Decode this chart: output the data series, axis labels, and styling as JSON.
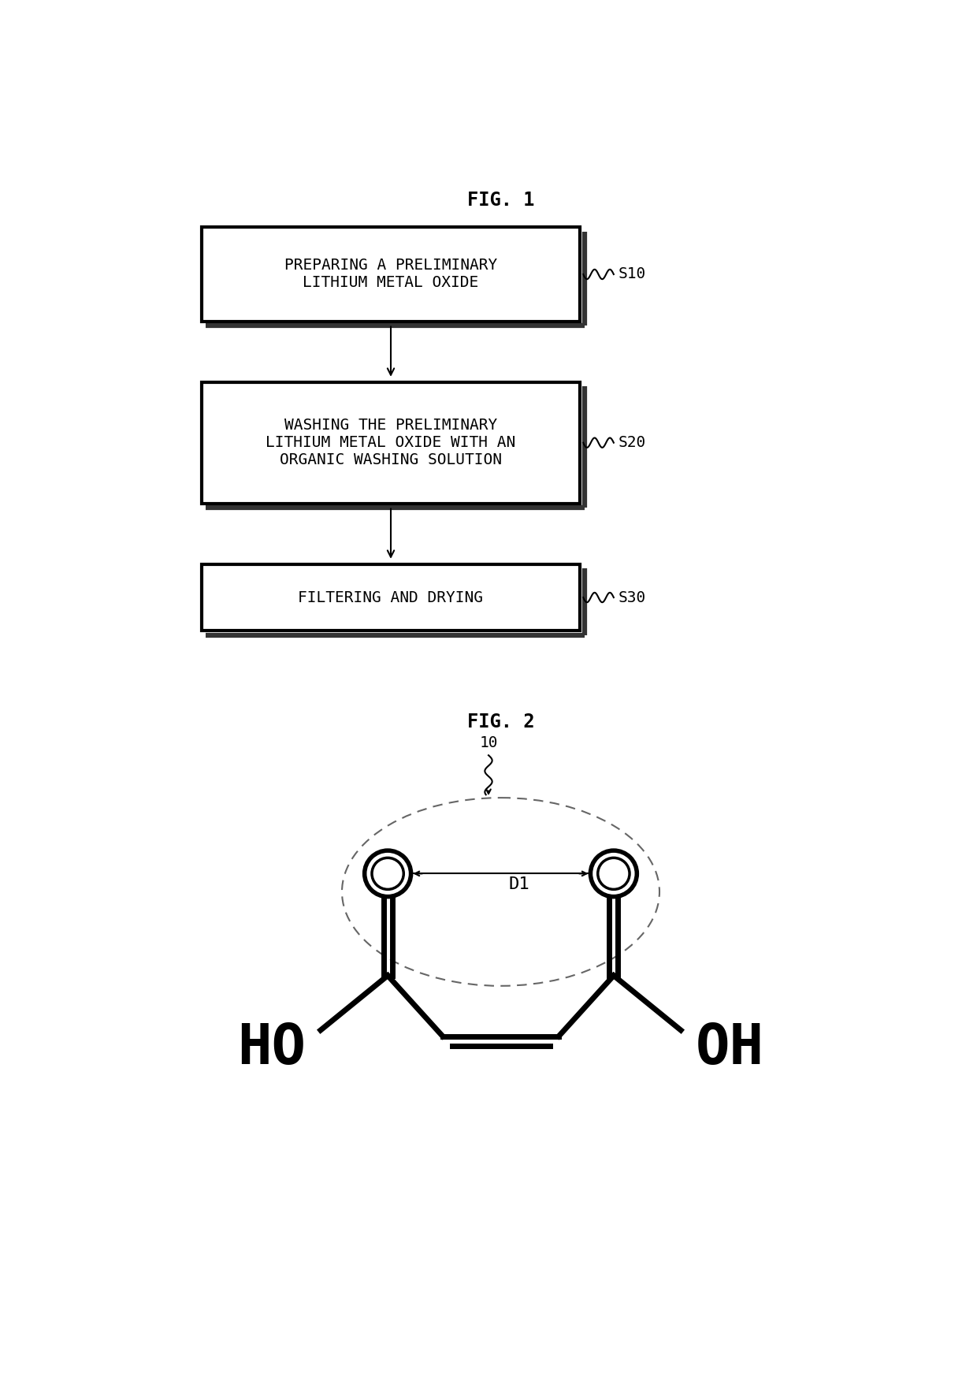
{
  "fig1_title": "FIG. 1",
  "fig2_title": "FIG. 2",
  "box1_text": "PREPARING A PRELIMINARY\nLITHIUM METAL OXIDE",
  "box2_text": "WASHING THE PRELIMINARY\nLITHIUM METAL OXIDE WITH AN\nORGANIC WASHING SOLUTION",
  "box3_text": "FILTERING AND DRYING",
  "label1": "S10",
  "label2": "S20",
  "label3": "S30",
  "label_10": "10",
  "label_D1": "D1",
  "bg_color": "#ffffff",
  "box_edge_color": "#000000",
  "shadow_color": "#333333",
  "arrow_color": "#000000",
  "text_color": "#000000",
  "font_size_box": 14,
  "font_size_title": 17,
  "font_size_label": 14,
  "font_size_step": 14,
  "font_size_HO": 52
}
